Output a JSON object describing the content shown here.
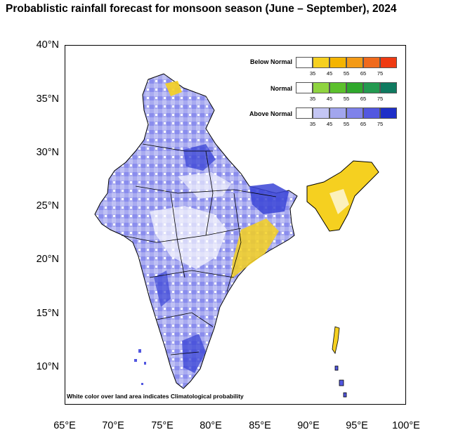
{
  "title": "Probablistic rainfall forecast for monsoon season (June – September), 2024",
  "footnote": "White color over land area indicates Climatological probability",
  "axes": {
    "y_ticks": [
      "40°N",
      "35°N",
      "30°N",
      "25°N",
      "20°N",
      "15°N",
      "10°N"
    ],
    "x_ticks": [
      "65°E",
      "70°E",
      "75°E",
      "80°E",
      "85°E",
      "90°E",
      "95°E",
      "100°E"
    ]
  },
  "legend": {
    "thresholds": [
      "35",
      "45",
      "55",
      "65",
      "75"
    ],
    "categories": [
      {
        "label": "Below Normal",
        "colors": [
          "#ffffff",
          "#f5d020",
          "#f4b400",
          "#f39a16",
          "#f06a1c",
          "#ef3a12"
        ]
      },
      {
        "label": "Normal",
        "colors": [
          "#ffffff",
          "#8fd440",
          "#5cc02c",
          "#2fa82c",
          "#249a50",
          "#0f7a60"
        ]
      },
      {
        "label": "Above Normal",
        "colors": [
          "#ffffff",
          "#c4c6f4",
          "#a2a6ee",
          "#7f82ea",
          "#5257e0",
          "#1e2fc8"
        ]
      }
    ]
  }
}
